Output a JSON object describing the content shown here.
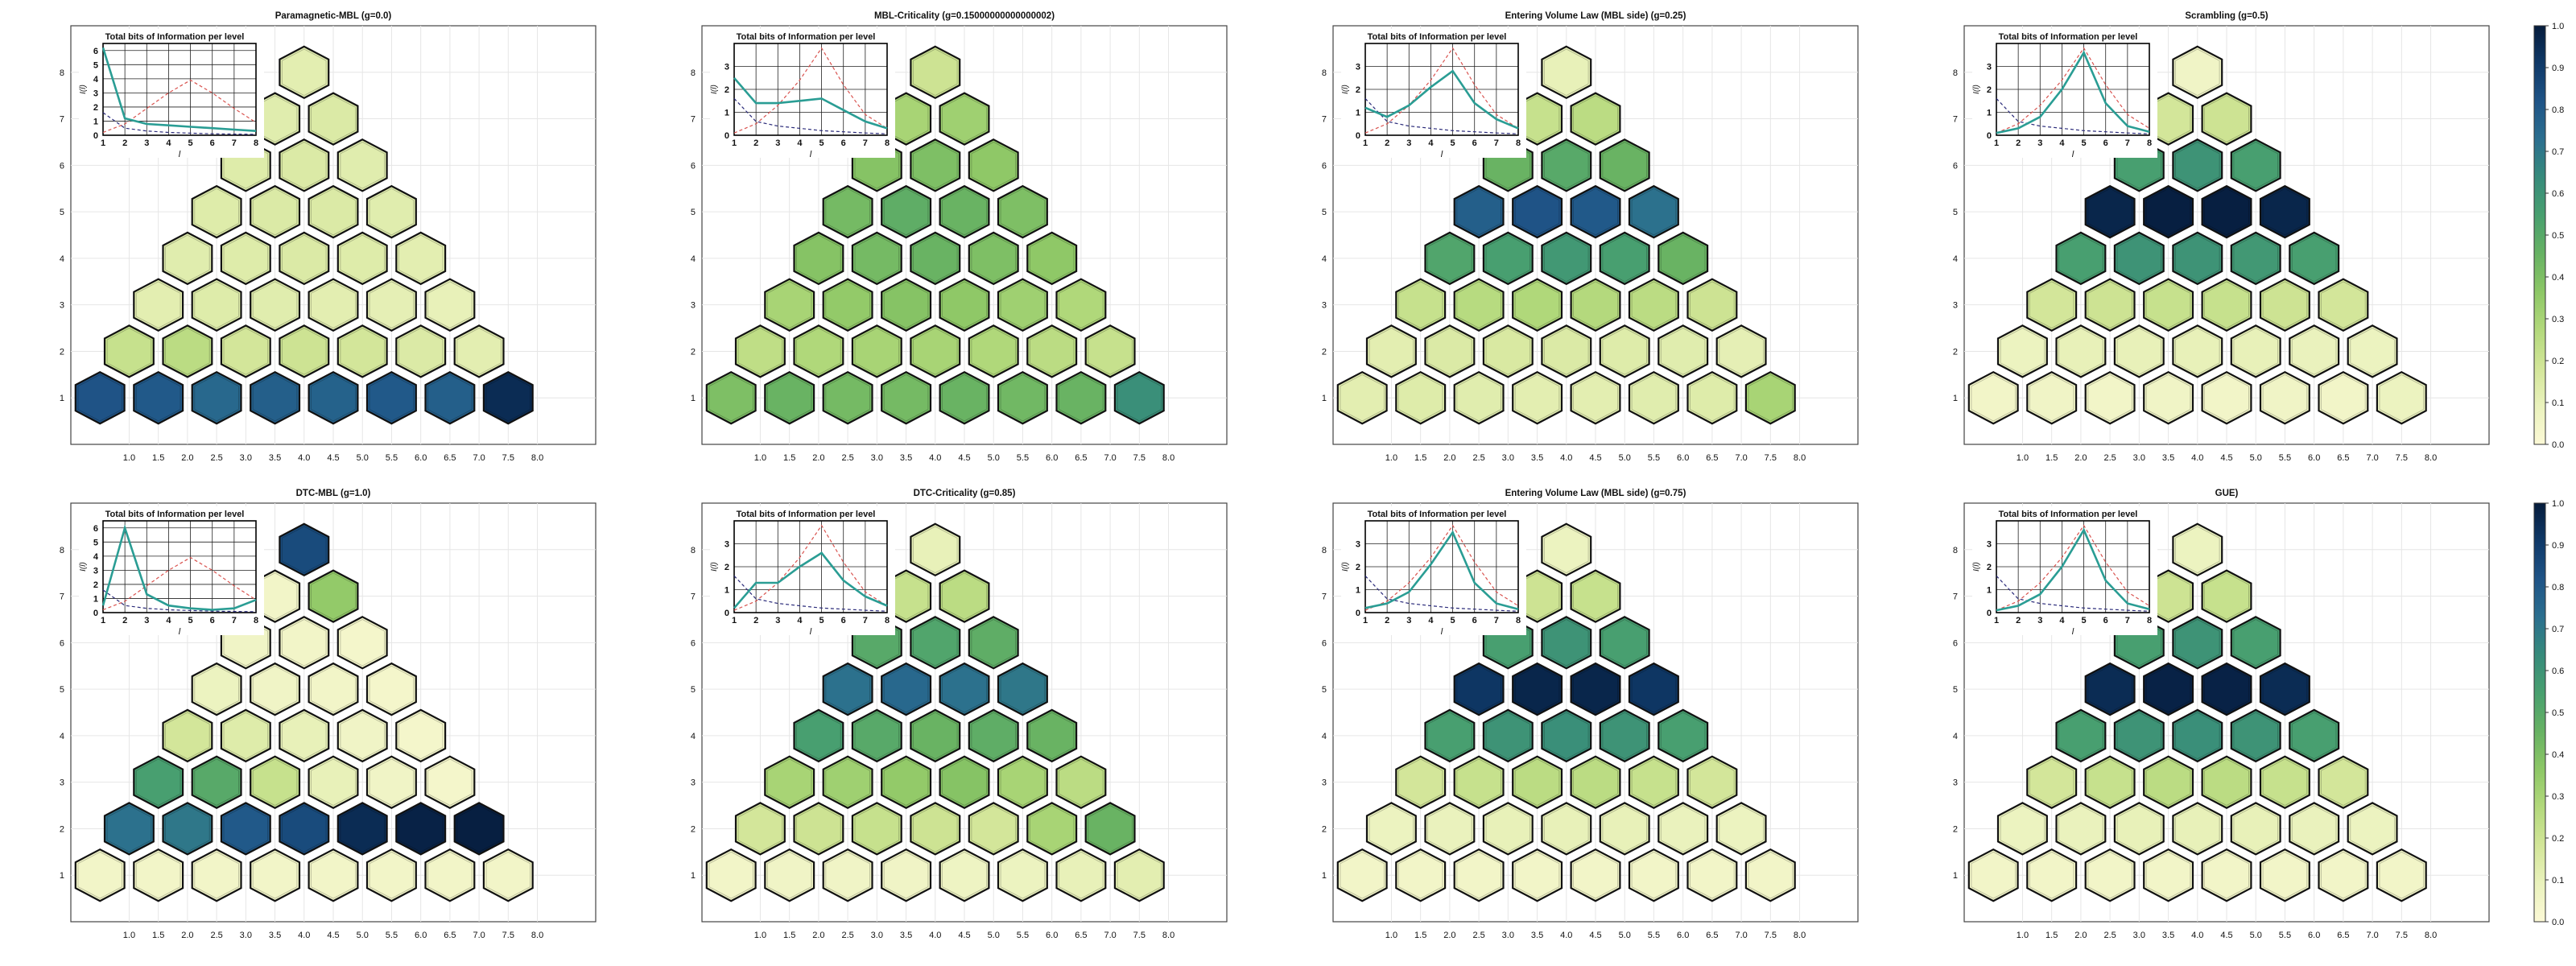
{
  "figure": {
    "colorbar_ticks": [
      "0.0",
      "0.1",
      "0.2",
      "0.3",
      "0.4",
      "0.5",
      "0.6",
      "0.7",
      "0.8",
      "0.9",
      "1.0"
    ],
    "colormap": [
      "#fcf9d6",
      "#eaf2bd",
      "#d3e699",
      "#b3d97c",
      "#8dc766",
      "#67b263",
      "#49a06f",
      "#378b7b",
      "#2b6f8f",
      "#1f5487",
      "#0f3968",
      "#061c3c"
    ]
  },
  "chart_data": [
    {
      "type": "heatmap",
      "title": "Paramagnetic-MBL (g=0.0)",
      "x_ticks": [
        "1.0",
        "1.5",
        "2.0",
        "2.5",
        "3.0",
        "3.5",
        "4.0",
        "4.5",
        "5.0",
        "5.5",
        "6.0",
        "6.5",
        "7.0",
        "7.5",
        "8.0"
      ],
      "y_ticks": [
        "1",
        "2",
        "3",
        "4",
        "5",
        "6",
        "7",
        "8"
      ],
      "rows": [
        [
          0.82,
          0.8,
          0.75,
          0.78,
          0.77,
          0.8,
          0.78,
          0.95
        ],
        [
          0.22,
          0.25,
          0.18,
          0.2,
          0.18,
          0.15,
          0.12
        ],
        [
          0.12,
          0.14,
          0.13,
          0.12,
          0.11,
          0.1
        ],
        [
          0.13,
          0.14,
          0.15,
          0.14,
          0.12
        ],
        [
          0.14,
          0.15,
          0.15,
          0.13
        ],
        [
          0.14,
          0.15,
          0.13
        ],
        [
          0.13,
          0.15
        ],
        [
          0.12
        ]
      ],
      "inset": {
        "title": "Total bits of Information per level",
        "xlabel": "l",
        "ylabel": "I(l)",
        "x_ticks": [
          "1",
          "2",
          "3",
          "4",
          "5",
          "6",
          "7",
          "8"
        ],
        "y_ticks": [
          "0",
          "1",
          "2",
          "3",
          "4",
          "5",
          "6"
        ],
        "ylim": [
          0,
          6.5
        ],
        "total": [
          6.2,
          1.2,
          0.8,
          0.7,
          0.6,
          0.5,
          0.4,
          0.3
        ],
        "ref_red": [
          0.2,
          0.8,
          1.9,
          3.0,
          3.9,
          3.0,
          1.9,
          0.9
        ],
        "ref_blue": [
          1.6,
          0.5,
          0.3,
          0.2,
          0.15,
          0.1,
          0.08,
          0.06
        ]
      }
    },
    {
      "type": "heatmap",
      "title": "MBL-Criticality (g=0.15000000000000002)",
      "x_ticks": [
        "1.0",
        "1.5",
        "2.0",
        "2.5",
        "3.0",
        "3.5",
        "4.0",
        "4.5",
        "5.0",
        "5.5",
        "6.0",
        "6.5",
        "7.0",
        "7.5",
        "8.0"
      ],
      "y_ticks": [
        "1",
        "2",
        "3",
        "4",
        "5",
        "6",
        "7",
        "8"
      ],
      "rows": [
        [
          0.4,
          0.45,
          0.42,
          0.42,
          0.45,
          0.43,
          0.45,
          0.62
        ],
        [
          0.24,
          0.28,
          0.3,
          0.3,
          0.28,
          0.25,
          0.22
        ],
        [
          0.3,
          0.35,
          0.38,
          0.36,
          0.32,
          0.28
        ],
        [
          0.38,
          0.42,
          0.45,
          0.4,
          0.36
        ],
        [
          0.42,
          0.48,
          0.45,
          0.4
        ],
        [
          0.38,
          0.4,
          0.36
        ],
        [
          0.3,
          0.32
        ],
        [
          0.2
        ]
      ],
      "inset": {
        "title": "Total bits of Information per level",
        "xlabel": "l",
        "ylabel": "I(l)",
        "x_ticks": [
          "1",
          "2",
          "3",
          "4",
          "5",
          "6",
          "7",
          "8"
        ],
        "y_ticks": [
          "0",
          "1",
          "2",
          "3"
        ],
        "ylim": [
          0,
          4
        ],
        "total": [
          2.5,
          1.4,
          1.4,
          1.5,
          1.6,
          1.1,
          0.6,
          0.3
        ],
        "ref_red": [
          0.1,
          0.5,
          1.3,
          2.4,
          3.8,
          2.2,
          0.9,
          0.3
        ],
        "ref_blue": [
          1.6,
          0.6,
          0.4,
          0.3,
          0.2,
          0.15,
          0.1,
          0.06
        ]
      }
    },
    {
      "type": "heatmap",
      "title": "Entering Volume Law (MBL side) (g=0.25)",
      "x_ticks": [
        "1.0",
        "1.5",
        "2.0",
        "2.5",
        "3.0",
        "3.5",
        "4.0",
        "4.5",
        "5.0",
        "5.5",
        "6.0",
        "6.5",
        "7.0",
        "7.5",
        "8.0"
      ],
      "y_ticks": [
        "1",
        "2",
        "3",
        "4",
        "5",
        "6",
        "7",
        "8"
      ],
      "rows": [
        [
          0.12,
          0.14,
          0.13,
          0.12,
          0.12,
          0.13,
          0.14,
          0.3
        ],
        [
          0.12,
          0.15,
          0.16,
          0.15,
          0.14,
          0.13,
          0.11
        ],
        [
          0.22,
          0.26,
          0.28,
          0.27,
          0.25,
          0.2
        ],
        [
          0.52,
          0.55,
          0.58,
          0.55,
          0.45
        ],
        [
          0.78,
          0.82,
          0.8,
          0.72
        ],
        [
          0.45,
          0.5,
          0.45
        ],
        [
          0.22,
          0.25
        ],
        [
          0.1
        ]
      ],
      "inset": {
        "title": "Total bits of Information per level",
        "xlabel": "l",
        "ylabel": "I(l)",
        "x_ticks": [
          "1",
          "2",
          "3",
          "4",
          "5",
          "6",
          "7",
          "8"
        ],
        "y_ticks": [
          "0",
          "1",
          "2",
          "3"
        ],
        "ylim": [
          0,
          4
        ],
        "total": [
          1.2,
          0.8,
          1.3,
          2.1,
          2.8,
          1.4,
          0.7,
          0.3
        ],
        "ref_red": [
          0.1,
          0.5,
          1.3,
          2.4,
          3.8,
          2.2,
          0.9,
          0.3
        ],
        "ref_blue": [
          1.6,
          0.6,
          0.4,
          0.3,
          0.2,
          0.15,
          0.1,
          0.06
        ]
      }
    },
    {
      "type": "heatmap",
      "title": "Scrambling (g=0.5)",
      "x_ticks": [
        "1.0",
        "1.5",
        "2.0",
        "2.5",
        "3.0",
        "3.5",
        "4.0",
        "4.5",
        "5.0",
        "5.5",
        "6.0",
        "6.5",
        "7.0",
        "7.5",
        "8.0"
      ],
      "y_ticks": [
        "1",
        "2",
        "3",
        "4",
        "5",
        "6",
        "7",
        "8"
      ],
      "rows": [
        [
          0.05,
          0.06,
          0.05,
          0.06,
          0.05,
          0.06,
          0.05,
          0.08
        ],
        [
          0.08,
          0.1,
          0.1,
          0.1,
          0.1,
          0.09,
          0.08
        ],
        [
          0.18,
          0.2,
          0.22,
          0.22,
          0.2,
          0.18
        ],
        [
          0.55,
          0.6,
          0.6,
          0.58,
          0.55
        ],
        [
          0.97,
          0.99,
          0.99,
          0.97
        ],
        [
          0.55,
          0.6,
          0.55
        ],
        [
          0.18,
          0.2
        ],
        [
          0.06
        ]
      ],
      "inset": {
        "title": "Total bits of Information per level",
        "xlabel": "l",
        "ylabel": "I(l)",
        "x_ticks": [
          "1",
          "2",
          "3",
          "4",
          "5",
          "6",
          "7",
          "8"
        ],
        "y_ticks": [
          "0",
          "1",
          "2",
          "3"
        ],
        "ylim": [
          0,
          4
        ],
        "total": [
          0.1,
          0.3,
          0.8,
          2.0,
          3.6,
          1.4,
          0.4,
          0.15
        ],
        "ref_red": [
          0.1,
          0.5,
          1.3,
          2.4,
          3.8,
          2.2,
          0.9,
          0.3
        ],
        "ref_blue": [
          1.6,
          0.6,
          0.4,
          0.3,
          0.2,
          0.15,
          0.1,
          0.06
        ]
      }
    },
    {
      "type": "heatmap",
      "title": "DTC-MBL (g=1.0)",
      "x_ticks": [
        "1.0",
        "1.5",
        "2.0",
        "2.5",
        "3.0",
        "3.5",
        "4.0",
        "4.5",
        "5.0",
        "5.5",
        "6.0",
        "6.5",
        "7.0",
        "7.5",
        "8.0"
      ],
      "y_ticks": [
        "1",
        "2",
        "3",
        "4",
        "5",
        "6",
        "7",
        "8"
      ],
      "rows": [
        [
          0.05,
          0.05,
          0.05,
          0.05,
          0.05,
          0.05,
          0.05,
          0.05
        ],
        [
          0.72,
          0.7,
          0.8,
          0.85,
          0.95,
          0.98,
          0.99
        ],
        [
          0.55,
          0.5,
          0.22,
          0.1,
          0.06,
          0.04
        ],
        [
          0.18,
          0.14,
          0.1,
          0.06,
          0.04
        ],
        [
          0.08,
          0.06,
          0.05,
          0.04
        ],
        [
          0.06,
          0.05,
          0.04
        ],
        [
          0.05,
          0.35
        ],
        [
          0.85
        ]
      ],
      "inset": {
        "title": "Total bits of Information per level",
        "xlabel": "l",
        "ylabel": "I(l)",
        "x_ticks": [
          "1",
          "2",
          "3",
          "4",
          "5",
          "6",
          "7",
          "8"
        ],
        "y_ticks": [
          "0",
          "1",
          "2",
          "3",
          "4",
          "5",
          "6"
        ],
        "ylim": [
          0,
          6.5
        ],
        "total": [
          0.5,
          6.0,
          1.3,
          0.5,
          0.3,
          0.2,
          0.3,
          0.9
        ],
        "ref_red": [
          0.2,
          0.8,
          1.9,
          3.0,
          3.9,
          3.0,
          1.9,
          0.9
        ],
        "ref_blue": [
          1.6,
          0.5,
          0.3,
          0.2,
          0.15,
          0.1,
          0.08,
          0.06
        ]
      }
    },
    {
      "type": "heatmap",
      "title": "DTC-Criticality (g=0.85)",
      "x_ticks": [
        "1.0",
        "1.5",
        "2.0",
        "2.5",
        "3.0",
        "3.5",
        "4.0",
        "4.5",
        "5.0",
        "5.5",
        "6.0",
        "6.5",
        "7.0",
        "7.5",
        "8.0"
      ],
      "y_ticks": [
        "1",
        "2",
        "3",
        "4",
        "5",
        "6",
        "7",
        "8"
      ],
      "rows": [
        [
          0.05,
          0.06,
          0.06,
          0.06,
          0.07,
          0.08,
          0.1,
          0.12
        ],
        [
          0.18,
          0.2,
          0.22,
          0.2,
          0.18,
          0.3,
          0.45
        ],
        [
          0.3,
          0.32,
          0.35,
          0.38,
          0.3,
          0.25
        ],
        [
          0.55,
          0.5,
          0.45,
          0.48,
          0.45
        ],
        [
          0.72,
          0.75,
          0.72,
          0.7
        ],
        [
          0.5,
          0.52,
          0.48
        ],
        [
          0.22,
          0.25
        ],
        [
          0.1
        ]
      ],
      "inset": {
        "title": "Total bits of Information per level",
        "xlabel": "l",
        "ylabel": "I(l)",
        "x_ticks": [
          "1",
          "2",
          "3",
          "4",
          "5",
          "6",
          "7",
          "8"
        ],
        "y_ticks": [
          "0",
          "1",
          "2",
          "3"
        ],
        "ylim": [
          0,
          4
        ],
        "total": [
          0.2,
          1.3,
          1.3,
          2.0,
          2.6,
          1.4,
          0.7,
          0.3
        ],
        "ref_red": [
          0.1,
          0.5,
          1.3,
          2.4,
          3.8,
          2.2,
          0.9,
          0.3
        ],
        "ref_blue": [
          1.6,
          0.6,
          0.4,
          0.3,
          0.2,
          0.15,
          0.1,
          0.06
        ]
      }
    },
    {
      "type": "heatmap",
      "title": "Entering Volume Law (MBL side) (g=0.75)",
      "x_ticks": [
        "1.0",
        "1.5",
        "2.0",
        "2.5",
        "3.0",
        "3.5",
        "4.0",
        "4.5",
        "5.0",
        "5.5",
        "6.0",
        "6.5",
        "7.0",
        "7.5",
        "8.0"
      ],
      "y_ticks": [
        "1",
        "2",
        "3",
        "4",
        "5",
        "6",
        "7",
        "8"
      ],
      "rows": [
        [
          0.05,
          0.05,
          0.05,
          0.05,
          0.05,
          0.05,
          0.05,
          0.05
        ],
        [
          0.08,
          0.09,
          0.1,
          0.1,
          0.1,
          0.09,
          0.08
        ],
        [
          0.18,
          0.22,
          0.25,
          0.25,
          0.22,
          0.18
        ],
        [
          0.55,
          0.6,
          0.62,
          0.6,
          0.55
        ],
        [
          0.92,
          0.97,
          0.97,
          0.92
        ],
        [
          0.55,
          0.6,
          0.55
        ],
        [
          0.2,
          0.22
        ],
        [
          0.08
        ]
      ],
      "inset": {
        "title": "Total bits of Information per level",
        "xlabel": "l",
        "ylabel": "I(l)",
        "x_ticks": [
          "1",
          "2",
          "3",
          "4",
          "5",
          "6",
          "7",
          "8"
        ],
        "y_ticks": [
          "0",
          "1",
          "2",
          "3"
        ],
        "ylim": [
          0,
          4
        ],
        "total": [
          0.2,
          0.4,
          0.9,
          2.1,
          3.5,
          1.3,
          0.4,
          0.15
        ],
        "ref_red": [
          0.1,
          0.5,
          1.3,
          2.4,
          3.8,
          2.2,
          0.9,
          0.3
        ],
        "ref_blue": [
          1.6,
          0.6,
          0.4,
          0.3,
          0.2,
          0.15,
          0.1,
          0.06
        ]
      }
    },
    {
      "type": "heatmap",
      "title": "GUE)",
      "x_ticks": [
        "1.0",
        "1.5",
        "2.0",
        "2.5",
        "3.0",
        "3.5",
        "4.0",
        "4.5",
        "5.0",
        "5.5",
        "6.0",
        "6.5",
        "7.0",
        "7.5",
        "8.0"
      ],
      "y_ticks": [
        "1",
        "2",
        "3",
        "4",
        "5",
        "6",
        "7",
        "8"
      ],
      "rows": [
        [
          0.05,
          0.05,
          0.05,
          0.05,
          0.05,
          0.05,
          0.05,
          0.05
        ],
        [
          0.08,
          0.09,
          0.1,
          0.1,
          0.1,
          0.09,
          0.08
        ],
        [
          0.18,
          0.22,
          0.25,
          0.25,
          0.22,
          0.18
        ],
        [
          0.55,
          0.6,
          0.62,
          0.6,
          0.55
        ],
        [
          0.95,
          0.98,
          0.98,
          0.95
        ],
        [
          0.55,
          0.6,
          0.55
        ],
        [
          0.2,
          0.22
        ],
        [
          0.08
        ]
      ],
      "inset": {
        "title": "Total bits of Information per level",
        "xlabel": "l",
        "ylabel": "I(l)",
        "x_ticks": [
          "1",
          "2",
          "3",
          "4",
          "5",
          "6",
          "7",
          "8"
        ],
        "y_ticks": [
          "0",
          "1",
          "2",
          "3"
        ],
        "ylim": [
          0,
          4
        ],
        "total": [
          0.1,
          0.3,
          0.8,
          2.0,
          3.6,
          1.4,
          0.4,
          0.15
        ],
        "ref_red": [
          0.1,
          0.5,
          1.3,
          2.4,
          3.8,
          2.2,
          0.9,
          0.3
        ],
        "ref_blue": [
          1.6,
          0.6,
          0.4,
          0.3,
          0.2,
          0.15,
          0.1,
          0.06
        ]
      }
    }
  ]
}
